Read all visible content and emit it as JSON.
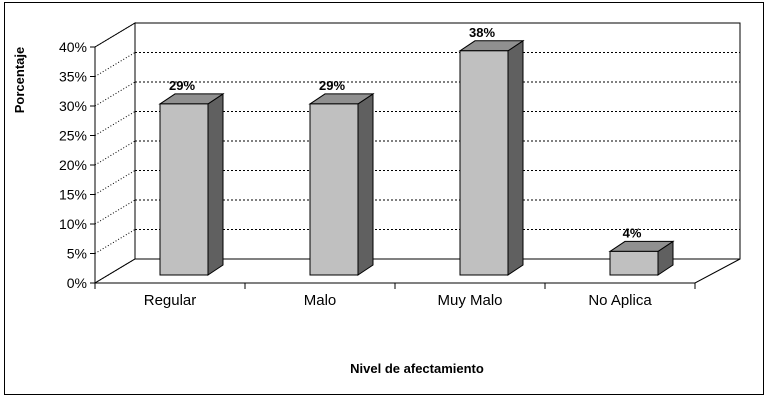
{
  "chart_data": {
    "type": "bar",
    "style": "3d-column",
    "categories": [
      "Regular",
      "Malo",
      "Muy Malo",
      "No Aplica"
    ],
    "values": [
      29,
      29,
      38,
      4
    ],
    "data_labels": [
      "29%",
      "29%",
      "38%",
      "4%"
    ],
    "xlabel": "Nivel de afectamiento",
    "ylabel": "Porcentaje",
    "ylim": [
      0,
      40
    ],
    "yticks": [
      "0%",
      "5%",
      "10%",
      "15%",
      "20%",
      "25%",
      "30%",
      "35%",
      "40%"
    ],
    "grid": true,
    "legend": "none",
    "colors": {
      "bar_front": "#c0c0c0",
      "bar_side": "#606060",
      "bar_top": "#909090",
      "wall": "#ffffff",
      "gridline": "#000000"
    }
  }
}
